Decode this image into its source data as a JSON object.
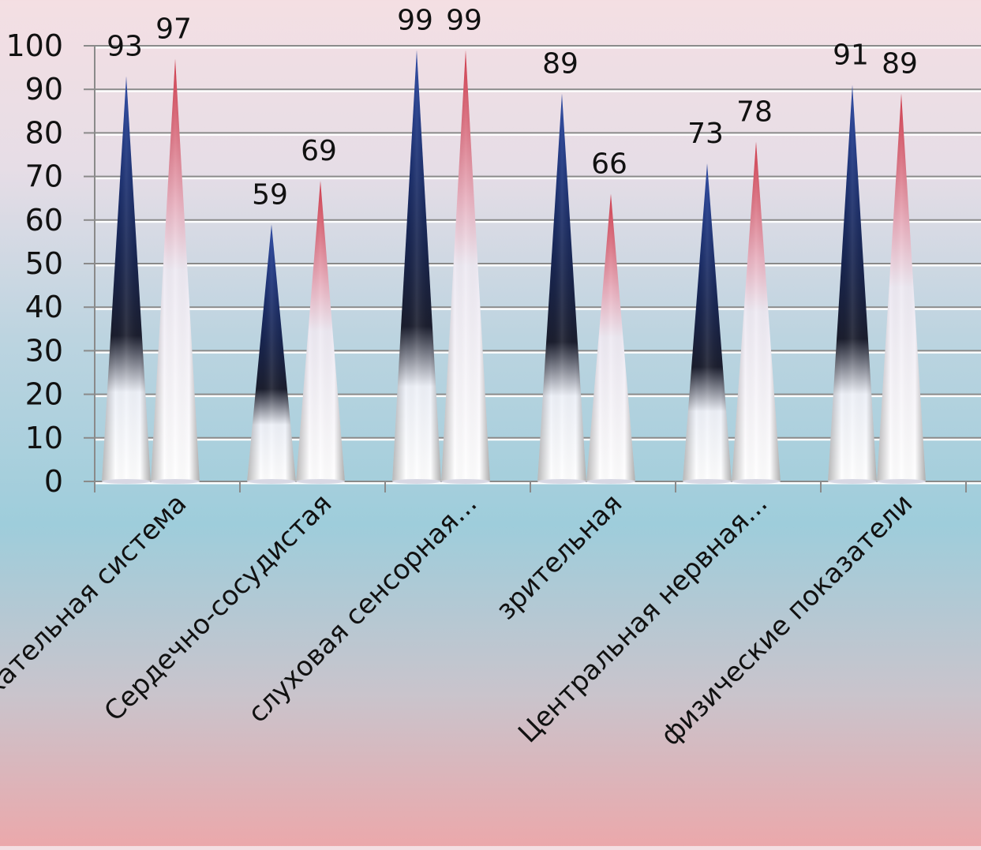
{
  "chart_data": {
    "type": "bar",
    "bar_shape": "cone",
    "categories": [
      "Дыхательная система",
      "Сердечно-сосудистая",
      "слуховая сенсорная...",
      "зрительная",
      "Центральная нервная...",
      "физические показатели"
    ],
    "series": [
      {
        "values": [
          93,
          59,
          99,
          89,
          73,
          91
        ],
        "color": "#1b2f78"
      },
      {
        "values": [
          97,
          69,
          99,
          66,
          78,
          89
        ],
        "color": "#c8323f"
      }
    ],
    "ylim": [
      0,
      100
    ],
    "yticks": [
      0,
      10,
      20,
      30,
      40,
      50,
      60,
      70,
      80,
      90,
      100
    ],
    "grid": true,
    "data_labels": true,
    "legend": "none",
    "title": "",
    "xlabel": "",
    "ylabel": ""
  }
}
